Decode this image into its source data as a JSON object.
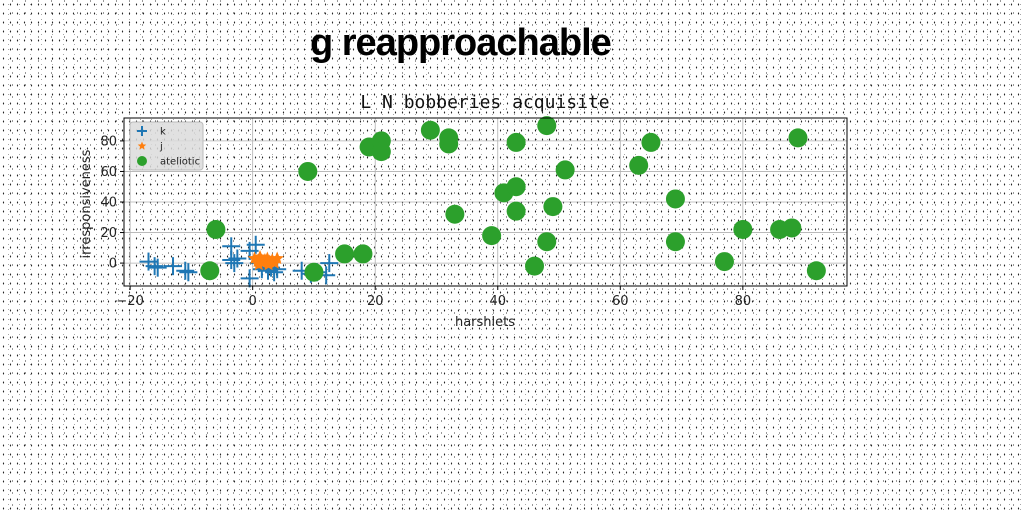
{
  "figure": {
    "suptitle": "g reapproachable"
  },
  "chart_data": {
    "type": "scatter",
    "title": "L N bobberies acquisite",
    "xlabel": "harshlets",
    "ylabel": "irresponsiveness",
    "xlim": [
      -21,
      97
    ],
    "ylim": [
      -15,
      95
    ],
    "xticks": [
      -20,
      0,
      20,
      40,
      60,
      80
    ],
    "yticks": [
      0,
      20,
      40,
      60,
      80
    ],
    "grid": true,
    "legend_position": "top-left",
    "series": [
      {
        "name": "k",
        "marker": "plus",
        "color": "#1f77b4",
        "points": [
          [
            -17,
            1
          ],
          [
            -16,
            -2
          ],
          [
            -15.5,
            -3
          ],
          [
            -13,
            -2
          ],
          [
            -11,
            -5
          ],
          [
            -10.5,
            -6
          ],
          [
            -3.5,
            11
          ],
          [
            -3.5,
            2
          ],
          [
            -3,
            0
          ],
          [
            -2.5,
            3
          ],
          [
            -0.5,
            8
          ],
          [
            0.5,
            12
          ],
          [
            -0.5,
            -10
          ],
          [
            1,
            0
          ],
          [
            1.5,
            -4
          ],
          [
            2.5,
            -5
          ],
          [
            3,
            -3
          ],
          [
            3.5,
            -6
          ],
          [
            4,
            -4
          ],
          [
            8,
            -5
          ],
          [
            9.5,
            -7
          ],
          [
            10.5,
            -6
          ],
          [
            12,
            -8
          ],
          [
            12.5,
            0
          ]
        ]
      },
      {
        "name": "j",
        "marker": "star",
        "color": "#ff7f0e",
        "points": [
          [
            0.3,
            3
          ],
          [
            0.8,
            1
          ],
          [
            1.2,
            4
          ],
          [
            1.6,
            0
          ],
          [
            2,
            2
          ],
          [
            2.4,
            3
          ],
          [
            2.8,
            1
          ],
          [
            3.2,
            2
          ],
          [
            3.6,
            0
          ],
          [
            4,
            3
          ],
          [
            1,
            -1
          ],
          [
            2.6,
            -1
          ]
        ]
      },
      {
        "name": "ateliotic",
        "marker": "circle",
        "color": "#2ca02c",
        "points": [
          [
            -7,
            -5
          ],
          [
            -6,
            22
          ],
          [
            9,
            60
          ],
          [
            10,
            -6
          ],
          [
            15,
            6
          ],
          [
            18,
            6
          ],
          [
            19,
            76
          ],
          [
            21,
            80
          ],
          [
            21,
            73
          ],
          [
            29,
            87
          ],
          [
            32,
            82
          ],
          [
            32,
            78
          ],
          [
            33,
            32
          ],
          [
            39,
            18
          ],
          [
            41,
            46
          ],
          [
            43,
            50
          ],
          [
            43,
            34
          ],
          [
            43,
            79
          ],
          [
            46,
            -2
          ],
          [
            48,
            14
          ],
          [
            48,
            90
          ],
          [
            49,
            37
          ],
          [
            51,
            61
          ],
          [
            63,
            64
          ],
          [
            65,
            79
          ],
          [
            69,
            14
          ],
          [
            69,
            42
          ],
          [
            77,
            1
          ],
          [
            80,
            22
          ],
          [
            86,
            22
          ],
          [
            88,
            23
          ],
          [
            89,
            82
          ],
          [
            92,
            -5
          ]
        ]
      }
    ]
  }
}
